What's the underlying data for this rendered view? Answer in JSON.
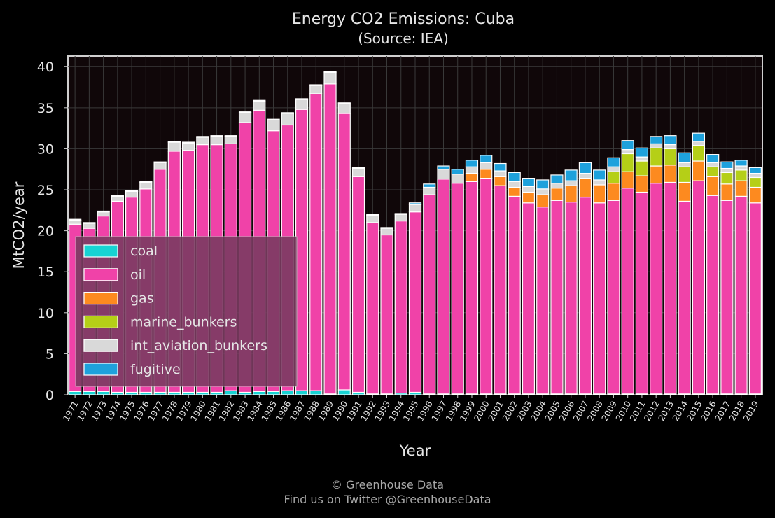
{
  "chart_data": {
    "type": "bar",
    "stacked": true,
    "title": "Energy CO2 Emissions: Cuba",
    "subtitle": "(Source: IEA)",
    "xlabel": "Year",
    "ylabel": "MtCO2/year",
    "ylim": [
      0,
      41.3
    ],
    "yticks": [
      0,
      5,
      10,
      15,
      20,
      25,
      30,
      35,
      40
    ],
    "grid": true,
    "legend_position": "lower-left",
    "categories": [
      "1971",
      "1972",
      "1973",
      "1974",
      "1975",
      "1976",
      "1977",
      "1978",
      "1979",
      "1980",
      "1981",
      "1982",
      "1983",
      "1984",
      "1985",
      "1986",
      "1987",
      "1988",
      "1989",
      "1990",
      "1991",
      "1992",
      "1993",
      "1994",
      "1995",
      "1996",
      "1997",
      "1998",
      "1999",
      "2000",
      "2001",
      "2002",
      "2003",
      "2004",
      "2005",
      "2006",
      "2007",
      "2008",
      "2009",
      "2010",
      "2011",
      "2012",
      "2013",
      "2014",
      "2015",
      "2016",
      "2017",
      "2018",
      "2019"
    ],
    "series": [
      {
        "name": "coal",
        "color": "#17d3d3",
        "values": [
          0.4,
          0.4,
          0.4,
          0.3,
          0.3,
          0.3,
          0.3,
          0.3,
          0.3,
          0.3,
          0.3,
          0.5,
          0.3,
          0.4,
          0.4,
          0.5,
          0.5,
          0.5,
          0.1,
          0.6,
          0.3,
          0.1,
          0.1,
          0.2,
          0.3,
          0.1,
          0.1,
          0.1,
          0.1,
          0.1,
          0.1,
          0.1,
          0.1,
          0.1,
          0.1,
          0.1,
          0.1,
          0.1,
          0.1,
          0.1,
          0.1,
          0.1,
          0.1,
          0.1,
          0.1,
          0.1,
          0.1,
          0.1,
          0.1
        ]
      },
      {
        "name": "oil",
        "color": "#f042a8",
        "values": [
          20.4,
          19.9,
          21.4,
          23.3,
          23.8,
          24.8,
          27.2,
          29.4,
          29.5,
          30.2,
          30.2,
          30.1,
          32.9,
          34.3,
          31.8,
          32.4,
          34.3,
          36.2,
          37.8,
          33.7,
          26.3,
          20.9,
          19.4,
          21.0,
          22.0,
          24.3,
          26.2,
          25.7,
          25.9,
          26.3,
          25.4,
          24.1,
          23.3,
          22.8,
          23.6,
          23.4,
          24.0,
          23.3,
          23.6,
          25.1,
          24.6,
          25.7,
          25.8,
          23.5,
          26.0,
          24.2,
          23.6,
          24.1,
          23.3
        ]
      },
      {
        "name": "gas",
        "color": "#fd8a1f",
        "values": [
          0,
          0,
          0,
          0,
          0,
          0,
          0,
          0,
          0,
          0,
          0,
          0,
          0,
          0,
          0,
          0,
          0,
          0,
          0,
          0,
          0,
          0,
          0,
          0,
          0,
          0,
          0,
          0,
          1.0,
          1.1,
          1.1,
          1.1,
          1.3,
          1.5,
          1.5,
          2.0,
          2.3,
          2.2,
          2.1,
          2.0,
          2.0,
          2.1,
          2.1,
          2.3,
          2.4,
          2.3,
          2.0,
          1.9,
          1.9
        ]
      },
      {
        "name": "marine_bunkers",
        "color": "#b5cf17",
        "values": [
          0,
          0,
          0,
          0,
          0,
          0,
          0,
          0,
          0,
          0,
          0,
          0,
          0,
          0,
          0,
          0,
          0,
          0,
          0,
          0,
          0,
          0,
          0,
          0,
          0,
          0,
          0,
          0,
          0,
          0,
          0,
          0,
          0,
          0,
          0,
          0,
          0,
          0,
          1.4,
          2.2,
          1.8,
          2.2,
          2.0,
          1.9,
          1.9,
          1.2,
          1.4,
          1.3,
          1.2
        ]
      },
      {
        "name": "int_aviation_bunkers",
        "color": "#d9d9d9",
        "values": [
          0.5,
          0.6,
          0.5,
          0.6,
          0.7,
          0.8,
          0.8,
          1.1,
          0.9,
          0.9,
          1.0,
          0.9,
          1.2,
          1.1,
          1.3,
          1.4,
          1.2,
          1.0,
          1.4,
          1.2,
          1.0,
          0.9,
          0.8,
          0.8,
          0.9,
          0.9,
          1.2,
          1.1,
          0.8,
          0.8,
          0.7,
          0.7,
          0.7,
          0.7,
          0.6,
          0.6,
          0.6,
          0.6,
          0.6,
          0.5,
          0.5,
          0.5,
          0.5,
          0.5,
          0.5,
          0.5,
          0.5,
          0.5,
          0.5
        ]
      },
      {
        "name": "fugitive",
        "color": "#1ea1dc",
        "values": [
          0.1,
          0.1,
          0.1,
          0.1,
          0.1,
          0.1,
          0.1,
          0.1,
          0.1,
          0.1,
          0.1,
          0.1,
          0.1,
          0.1,
          0.1,
          0.1,
          0.1,
          0.1,
          0.1,
          0.1,
          0.1,
          0.1,
          0.1,
          0.1,
          0.2,
          0.4,
          0.4,
          0.6,
          0.8,
          0.9,
          0.9,
          1.1,
          1.0,
          1.1,
          1.0,
          1.3,
          1.3,
          1.2,
          1.1,
          1.1,
          1.1,
          0.9,
          1.1,
          1.2,
          1.0,
          1.0,
          0.8,
          0.7,
          0.7
        ]
      }
    ]
  },
  "footer": {
    "credit": "© Greenhouse Data",
    "twitter": "Find us on Twitter @GreenhouseData"
  }
}
